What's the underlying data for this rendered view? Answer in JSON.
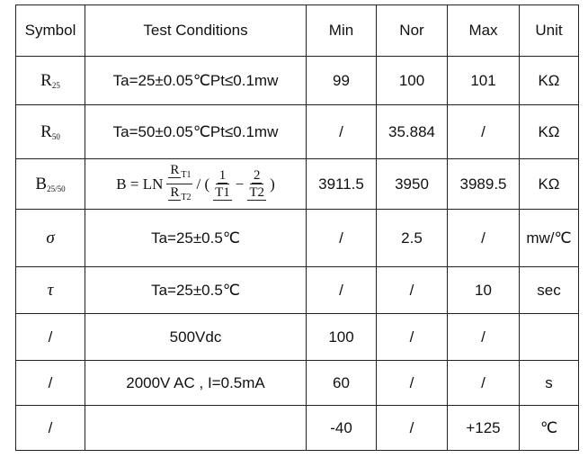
{
  "table": {
    "header": [
      "Symbol",
      "Test Conditions",
      "Min",
      "Nor",
      "Max",
      "Unit"
    ],
    "rows": [
      [
        {
          "main": "R",
          "sub": "25"
        },
        "Ta=25±0.05℃Pt≤0.1mw",
        "99",
        "100",
        "101",
        "KΩ"
      ],
      [
        {
          "main": "R",
          "sub": "50"
        },
        "Ta=50±0.05℃Pt≤0.1mw",
        "/",
        "35.884",
        "/",
        "KΩ"
      ],
      [
        {
          "main": "B",
          "sub": "25/50"
        },
        {
          "lhs": "B = LN",
          "frac1": {
            "num": "R",
            "num_sub": "T1",
            "den": "R",
            "den_sub": "T2"
          },
          "sep": "/ (",
          "frac2": {
            "num": "1",
            "den": "T1"
          },
          "minus": "−",
          "frac3": {
            "num": "2",
            "den": "T2"
          },
          "close": ")"
        },
        "3911.5",
        "3950",
        "3989.5",
        "KΩ"
      ],
      [
        {
          "main": "σ"
        },
        "Ta=25±0.5℃",
        "/",
        "2.5",
        "/",
        "mw/℃"
      ],
      [
        {
          "main": "τ"
        },
        "Ta=25±0.5℃",
        "/",
        "/",
        "10",
        "sec"
      ],
      [
        "/",
        "500Vdc",
        "100",
        "/",
        "/",
        null
      ],
      [
        "/",
        "2000V AC , I=0.5mA",
        "60",
        "/",
        "/",
        "s"
      ],
      [
        "/",
        null,
        "-40",
        "/",
        "+125",
        "℃"
      ]
    ]
  }
}
